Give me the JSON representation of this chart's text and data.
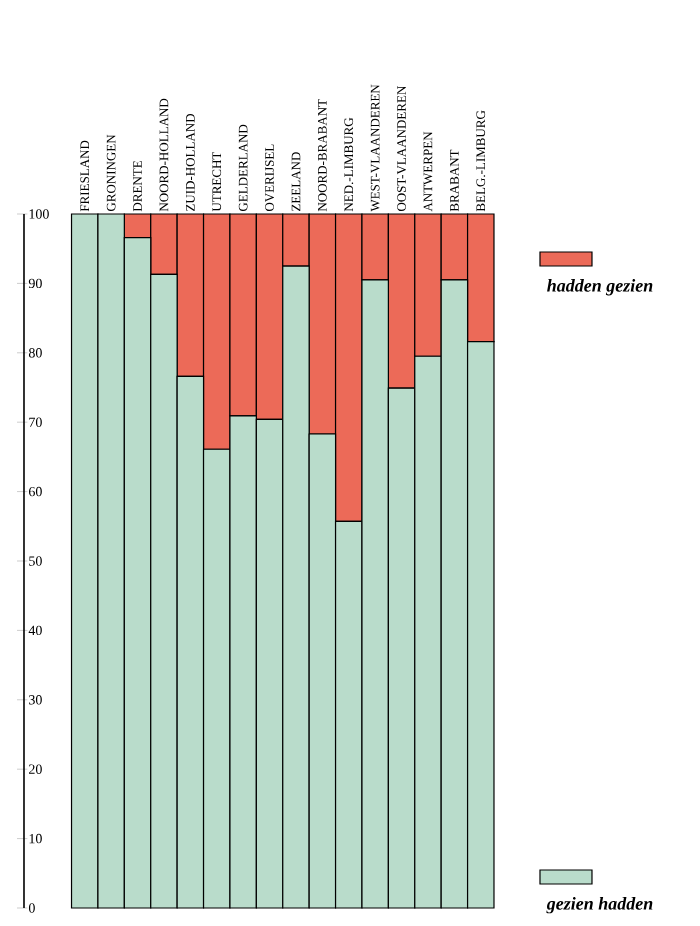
{
  "chart_data": {
    "type": "bar",
    "stacked": true,
    "categories": [
      "FRIESLAND",
      "GRONINGEN",
      "DRENTE",
      "NOORD-HOLLAND",
      "ZUID-HOLLAND",
      "UTRECHT",
      "GELDERLAND",
      "OVERIJSEL",
      "ZEELAND",
      "NOORD-BRABANT",
      "NED.-LIMBURG",
      "WEST-VLAANDEREN",
      "OOST-VLAANDEREN",
      "ANTWERPEN",
      "BRABANT",
      "BELG.-LIMBURG"
    ],
    "series": [
      {
        "name": "gezien hadden",
        "color": "#b9dccb",
        "values": [
          100,
          100,
          96.6,
          91.3,
          76.6,
          66.1,
          70.9,
          70.4,
          92.5,
          68.3,
          55.7,
          90.5,
          74.9,
          79.5,
          90.5,
          81.6
        ]
      },
      {
        "name": "hadden gezien",
        "color": "#ec6a58",
        "values": [
          0,
          0,
          3.4,
          8.7,
          23.4,
          33.9,
          29.1,
          29.6,
          7.5,
          31.7,
          44.3,
          9.5,
          25.1,
          20.5,
          9.5,
          18.4
        ]
      }
    ],
    "ylim": [
      0,
      100
    ],
    "yticks": [
      0,
      10,
      20,
      30,
      40,
      50,
      60,
      70,
      80,
      90,
      100
    ],
    "legend": "right",
    "grid": false
  }
}
